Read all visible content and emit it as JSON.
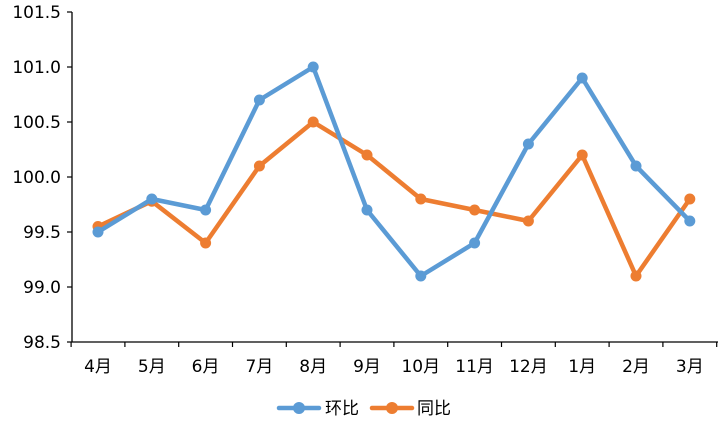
{
  "chart_data": {
    "type": "line",
    "categories": [
      "4月",
      "5月",
      "6月",
      "7月",
      "8月",
      "9月",
      "10月",
      "11月",
      "12月",
      "1月",
      "2月",
      "3月"
    ],
    "series": [
      {
        "name": "环比",
        "color": "#5B9BD5",
        "values": [
          99.5,
          99.8,
          99.7,
          100.7,
          101.0,
          99.7,
          99.1,
          99.4,
          100.3,
          100.9,
          100.1,
          99.6
        ]
      },
      {
        "name": "同比",
        "color": "#ED7D31",
        "values": [
          99.55,
          99.78,
          99.4,
          100.1,
          100.5,
          100.2,
          99.8,
          99.7,
          99.6,
          100.2,
          99.1,
          99.8
        ]
      }
    ],
    "ylim": [
      98.5,
      101.5
    ],
    "yticks": [
      "98.5",
      "99.0",
      "99.5",
      "100.0",
      "100.5",
      "101.0",
      "101.5"
    ],
    "grid": false,
    "legend_position": "bottom"
  }
}
